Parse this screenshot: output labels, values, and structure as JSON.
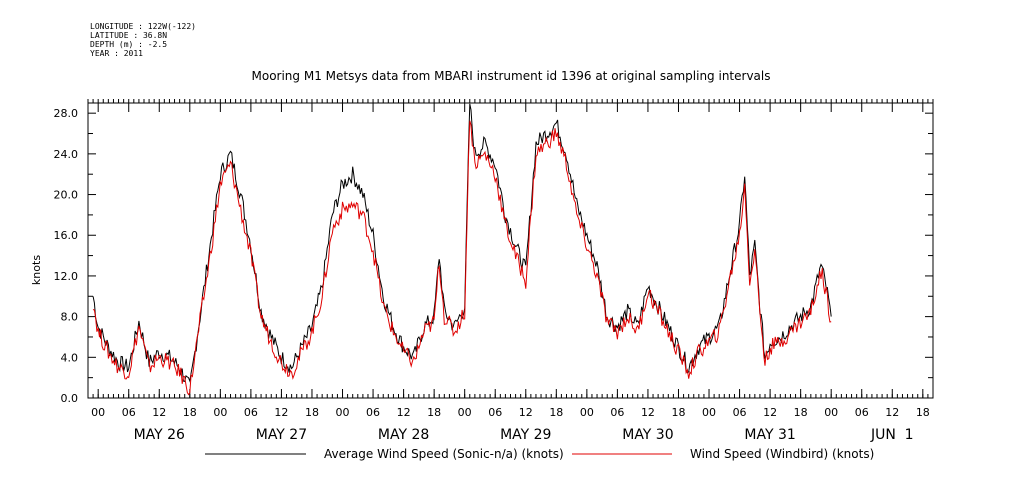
{
  "metadata": {
    "longitude": "LONGITUDE : 122W(-122)",
    "latitude": "LATITUDE : 36.8N",
    "depth": "DEPTH (m) : -2.5",
    "year": "YEAR : 2011"
  },
  "chart_data": {
    "type": "line",
    "title": "Mooring M1 Metsys data from MBARI instrument id 1396 at original sampling intervals",
    "ylabel": "knots",
    "xlabel": "",
    "ylim": [
      0,
      29
    ],
    "y_ticks": [
      "0.0",
      "4.0",
      "8.0",
      "12.0",
      "16.0",
      "20.0",
      "24.0",
      "28.0"
    ],
    "x_unit": "hours since MAY 26 00:00",
    "xlim": [
      -2,
      164
    ],
    "hour_ticks": [
      {
        "t": 0,
        "label": "00"
      },
      {
        "t": 6,
        "label": "06"
      },
      {
        "t": 12,
        "label": "12"
      },
      {
        "t": 18,
        "label": "18"
      },
      {
        "t": 24,
        "label": "00"
      },
      {
        "t": 30,
        "label": "06"
      },
      {
        "t": 36,
        "label": "12"
      },
      {
        "t": 42,
        "label": "18"
      },
      {
        "t": 48,
        "label": "00"
      },
      {
        "t": 54,
        "label": "06"
      },
      {
        "t": 60,
        "label": "12"
      },
      {
        "t": 66,
        "label": "18"
      },
      {
        "t": 72,
        "label": "00"
      },
      {
        "t": 78,
        "label": "06"
      },
      {
        "t": 84,
        "label": "12"
      },
      {
        "t": 90,
        "label": "18"
      },
      {
        "t": 96,
        "label": "00"
      },
      {
        "t": 102,
        "label": "06"
      },
      {
        "t": 108,
        "label": "12"
      },
      {
        "t": 114,
        "label": "18"
      },
      {
        "t": 120,
        "label": "00"
      },
      {
        "t": 126,
        "label": "06"
      },
      {
        "t": 132,
        "label": "12"
      },
      {
        "t": 138,
        "label": "18"
      },
      {
        "t": 144,
        "label": "00"
      },
      {
        "t": 150,
        "label": "06"
      },
      {
        "t": 156,
        "label": "12"
      },
      {
        "t": 162,
        "label": "18"
      }
    ],
    "day_labels": [
      {
        "t": 12,
        "label": "MAY 26"
      },
      {
        "t": 36,
        "label": "MAY 27"
      },
      {
        "t": 60,
        "label": "MAY 28"
      },
      {
        "t": 84,
        "label": "MAY 29"
      },
      {
        "t": 108,
        "label": "MAY 30"
      },
      {
        "t": 132,
        "label": "MAY 31"
      },
      {
        "t": 156,
        "label": "JUN  1"
      }
    ],
    "series": [
      {
        "name": "Average Wind Speed (Sonic-n/a) (knots)",
        "color": "#000000",
        "points": [
          [
            -1,
            10.0
          ],
          [
            0,
            7.0
          ],
          [
            2,
            5.0
          ],
          [
            4,
            3.5
          ],
          [
            6,
            3.0
          ],
          [
            8,
            7.5
          ],
          [
            10,
            3.5
          ],
          [
            12,
            4.5
          ],
          [
            14,
            4.0
          ],
          [
            16,
            3.0
          ],
          [
            18,
            1.0
          ],
          [
            20,
            8.0
          ],
          [
            22,
            15.0
          ],
          [
            24,
            22.0
          ],
          [
            26,
            24.0
          ],
          [
            28,
            20.0
          ],
          [
            30,
            15.0
          ],
          [
            32,
            8.5
          ],
          [
            34,
            6.0
          ],
          [
            36,
            4.0
          ],
          [
            38,
            3.0
          ],
          [
            40,
            5.0
          ],
          [
            42,
            7.0
          ],
          [
            44,
            11.0
          ],
          [
            46,
            18.0
          ],
          [
            48,
            21.0
          ],
          [
            50,
            22.0
          ],
          [
            52,
            20.0
          ],
          [
            54,
            16.0
          ],
          [
            56,
            10.0
          ],
          [
            58,
            7.0
          ],
          [
            60,
            5.0
          ],
          [
            62,
            4.0
          ],
          [
            64,
            7.0
          ],
          [
            66,
            8.0
          ],
          [
            67,
            14.0
          ],
          [
            68,
            8.5
          ],
          [
            70,
            7.0
          ],
          [
            72,
            9.0
          ],
          [
            73,
            29.0
          ],
          [
            74,
            24.0
          ],
          [
            76,
            25.0
          ],
          [
            78,
            23.0
          ],
          [
            80,
            18.0
          ],
          [
            82,
            15.0
          ],
          [
            84,
            12.5
          ],
          [
            86,
            25.0
          ],
          [
            88,
            26.0
          ],
          [
            90,
            27.0
          ],
          [
            92,
            24.0
          ],
          [
            94,
            19.0
          ],
          [
            96,
            16.0
          ],
          [
            98,
            13.0
          ],
          [
            100,
            8.0
          ],
          [
            102,
            7.0
          ],
          [
            104,
            8.5
          ],
          [
            106,
            7.0
          ],
          [
            108,
            11.0
          ],
          [
            110,
            9.0
          ],
          [
            112,
            7.0
          ],
          [
            114,
            5.0
          ],
          [
            116,
            3.0
          ],
          [
            118,
            5.0
          ],
          [
            120,
            6.0
          ],
          [
            122,
            7.0
          ],
          [
            124,
            12.0
          ],
          [
            126,
            17.0
          ],
          [
            127,
            22.0
          ],
          [
            128,
            12.0
          ],
          [
            129,
            15.0
          ],
          [
            130,
            9.0
          ],
          [
            131,
            4.0
          ],
          [
            132,
            5.5
          ],
          [
            134,
            6.0
          ],
          [
            136,
            7.0
          ],
          [
            138,
            8.0
          ],
          [
            140,
            9.0
          ],
          [
            142,
            13.0
          ],
          [
            143,
            11.0
          ],
          [
            144,
            8.0
          ]
        ]
      },
      {
        "name": "Wind Speed (Windbird) (knots)",
        "color": "#e00000",
        "points": [
          [
            -1,
            9.5
          ],
          [
            0,
            6.5
          ],
          [
            2,
            4.5
          ],
          [
            4,
            3.0
          ],
          [
            6,
            2.5
          ],
          [
            8,
            7.0
          ],
          [
            10,
            3.0
          ],
          [
            12,
            4.0
          ],
          [
            14,
            3.5
          ],
          [
            16,
            2.5
          ],
          [
            18,
            0.8
          ],
          [
            20,
            7.5
          ],
          [
            22,
            14.0
          ],
          [
            24,
            21.0
          ],
          [
            26,
            23.0
          ],
          [
            28,
            18.5
          ],
          [
            30,
            14.0
          ],
          [
            32,
            8.0
          ],
          [
            34,
            5.5
          ],
          [
            36,
            3.5
          ],
          [
            38,
            2.5
          ],
          [
            40,
            4.5
          ],
          [
            42,
            6.5
          ],
          [
            44,
            10.0
          ],
          [
            46,
            16.5
          ],
          [
            48,
            18.5
          ],
          [
            50,
            19.0
          ],
          [
            52,
            18.0
          ],
          [
            54,
            14.5
          ],
          [
            56,
            9.0
          ],
          [
            58,
            6.5
          ],
          [
            60,
            4.5
          ],
          [
            62,
            3.5
          ],
          [
            64,
            6.5
          ],
          [
            66,
            7.5
          ],
          [
            67,
            13.5
          ],
          [
            68,
            8.0
          ],
          [
            70,
            6.5
          ],
          [
            72,
            8.5
          ],
          [
            73,
            28.0
          ],
          [
            74,
            23.0
          ],
          [
            76,
            24.0
          ],
          [
            78,
            22.0
          ],
          [
            80,
            17.0
          ],
          [
            82,
            14.0
          ],
          [
            84,
            11.5
          ],
          [
            86,
            24.0
          ],
          [
            88,
            25.0
          ],
          [
            90,
            26.0
          ],
          [
            92,
            23.0
          ],
          [
            94,
            18.0
          ],
          [
            96,
            15.0
          ],
          [
            98,
            12.0
          ],
          [
            100,
            7.5
          ],
          [
            102,
            6.5
          ],
          [
            104,
            8.0
          ],
          [
            106,
            6.5
          ],
          [
            108,
            10.5
          ],
          [
            110,
            8.5
          ],
          [
            112,
            6.5
          ],
          [
            114,
            4.5
          ],
          [
            116,
            2.5
          ],
          [
            118,
            4.5
          ],
          [
            120,
            5.5
          ],
          [
            122,
            6.5
          ],
          [
            124,
            11.5
          ],
          [
            126,
            16.0
          ],
          [
            127,
            21.0
          ],
          [
            128,
            11.5
          ],
          [
            129,
            14.5
          ],
          [
            130,
            8.5
          ],
          [
            131,
            3.5
          ],
          [
            132,
            5.0
          ],
          [
            134,
            5.5
          ],
          [
            136,
            6.5
          ],
          [
            138,
            7.5
          ],
          [
            140,
            8.5
          ],
          [
            142,
            12.5
          ],
          [
            143,
            10.5
          ],
          [
            144,
            7.5
          ]
        ]
      }
    ]
  }
}
